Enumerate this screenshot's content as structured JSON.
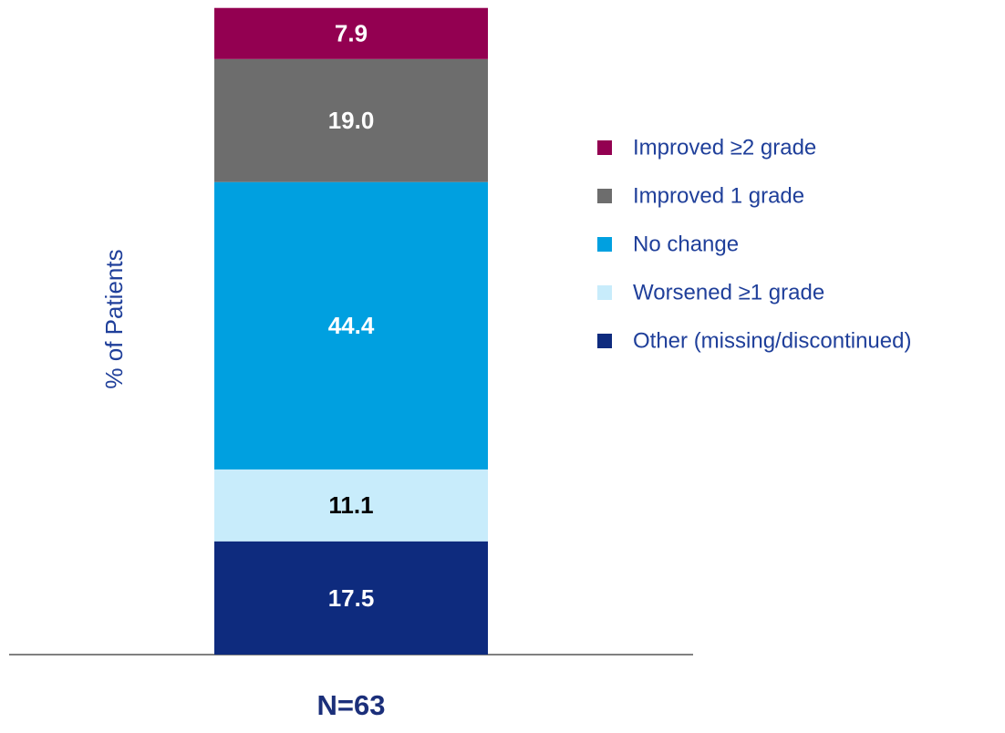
{
  "chart_data": {
    "type": "stacked_bar",
    "categories": [
      "N=63"
    ],
    "y_label": "% of Patients",
    "ylim": [
      0,
      100
    ],
    "series": [
      {
        "name": "Other (missing/discontinued)",
        "color": "#0e2b7e",
        "values": [
          17.5
        ]
      },
      {
        "name": "Worsened ≥1 grade",
        "color": "#c8ecfb",
        "values": [
          11.1
        ]
      },
      {
        "name": "No change",
        "color": "#00a0e0",
        "values": [
          44.4
        ]
      },
      {
        "name": "Improved 1 grade",
        "color": "#6d6d6d",
        "values": [
          19
        ],
        "value_labels": [
          "19.0"
        ]
      },
      {
        "name": "Improved ≥2 grade",
        "color": "#930051",
        "values": [
          7.9
        ]
      }
    ]
  }
}
